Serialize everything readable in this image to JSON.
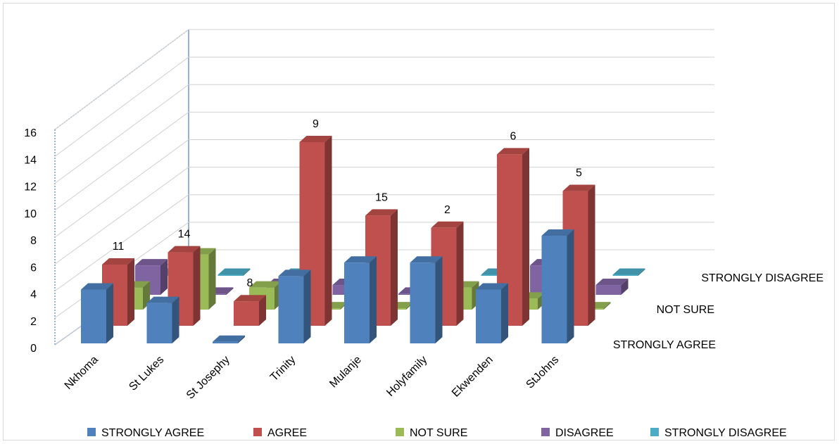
{
  "chart_data": {
    "type": "bar",
    "style": "3d-column",
    "categories": [
      "Nkhoma",
      "St Lukes",
      "St Josephy",
      "Trinity",
      "Mulanje",
      "Holyfamily",
      "Ekwenden",
      "StJohns"
    ],
    "series": [
      {
        "name": "STRONGLY AGREE",
        "color": "#4f81bd",
        "values": [
          4,
          3,
          0,
          5,
          6,
          6,
          4,
          8
        ]
      },
      {
        "name": "AGREE",
        "color": "#c0504d",
        "values": [
          5,
          6,
          2,
          15,
          9,
          8,
          14,
          11
        ]
      },
      {
        "name": "NOT SURE",
        "color": "#9bbb59",
        "values": [
          2,
          5,
          2,
          0,
          0,
          2,
          1,
          0
        ]
      },
      {
        "name": "DISAGREE",
        "color": "#8064a2",
        "values": [
          3,
          0,
          1,
          1,
          0,
          0,
          3,
          1
        ]
      },
      {
        "name": "STRONGLY DISAGREE",
        "color": "#4bacc6",
        "values": [
          0,
          0,
          0,
          0,
          0,
          0,
          0,
          0
        ]
      }
    ],
    "data_labels": {
      "series": "AGREE",
      "values": [
        "5",
        "6",
        "2",
        "15",
        "9",
        "8",
        "14",
        "11"
      ]
    },
    "depth_axis_labels": [
      "STRONGLY DISAGREE",
      "NOT SURE",
      "STRONGLY AGREE"
    ],
    "y_ticks": [
      "0",
      "2",
      "4",
      "6",
      "8",
      "10",
      "12",
      "14",
      "16"
    ],
    "ylim": [
      0,
      16
    ],
    "grid": true,
    "legend_position": "bottom"
  }
}
